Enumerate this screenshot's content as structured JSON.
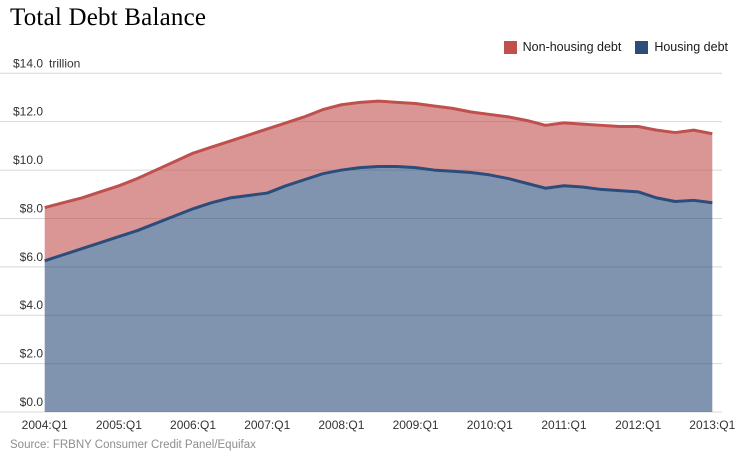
{
  "title": "Total Debt Balance",
  "source": "Source: FRBNY Consumer Credit Panel/Equifax",
  "legend": [
    {
      "label": "Non-housing debt",
      "color": "#c0504d"
    },
    {
      "label": "Housing debt",
      "color": "#2b4d7c"
    }
  ],
  "chart_data": {
    "type": "area",
    "stacked": true,
    "title": "Total Debt Balance",
    "ylabel": "trillion",
    "ylim": [
      0,
      14
    ],
    "grid": true,
    "legend_position": "top-right",
    "x": [
      "2004:Q1",
      "2004:Q2",
      "2004:Q3",
      "2004:Q4",
      "2005:Q1",
      "2005:Q2",
      "2005:Q3",
      "2005:Q4",
      "2006:Q1",
      "2006:Q2",
      "2006:Q3",
      "2006:Q4",
      "2007:Q1",
      "2007:Q2",
      "2007:Q3",
      "2007:Q4",
      "2008:Q1",
      "2008:Q2",
      "2008:Q3",
      "2008:Q4",
      "2009:Q1",
      "2009:Q2",
      "2009:Q3",
      "2009:Q4",
      "2010:Q1",
      "2010:Q2",
      "2010:Q3",
      "2010:Q4",
      "2011:Q1",
      "2011:Q2",
      "2011:Q3",
      "2011:Q4",
      "2012:Q1",
      "2012:Q2",
      "2012:Q3",
      "2012:Q4",
      "2013:Q1"
    ],
    "x_ticks": [
      {
        "index": 0,
        "label": "2004:Q1"
      },
      {
        "index": 4,
        "label": "2005:Q1"
      },
      {
        "index": 8,
        "label": "2006:Q1"
      },
      {
        "index": 12,
        "label": "2007:Q1"
      },
      {
        "index": 16,
        "label": "2008:Q1"
      },
      {
        "index": 20,
        "label": "2009:Q1"
      },
      {
        "index": 24,
        "label": "2010:Q1"
      },
      {
        "index": 28,
        "label": "2011:Q1"
      },
      {
        "index": 32,
        "label": "2012:Q1"
      },
      {
        "index": 36,
        "label": "2013:Q1"
      }
    ],
    "y_ticks": [
      {
        "value": 14,
        "label": "$14.0"
      },
      {
        "value": 12,
        "label": "$12.0"
      },
      {
        "value": 10,
        "label": "$10.0"
      },
      {
        "value": 8,
        "label": "$8.0"
      },
      {
        "value": 6,
        "label": "$6.0"
      },
      {
        "value": 4,
        "label": "$4.0"
      },
      {
        "value": 2,
        "label": "$2.0"
      },
      {
        "value": 0,
        "label": "$0.0"
      }
    ],
    "series": [
      {
        "name": "Housing debt",
        "line_color": "#2b4d7c",
        "fill_color": "#2b4d7c",
        "fill_opacity": 0.6,
        "values": [
          6.25,
          6.5,
          6.75,
          7.0,
          7.25,
          7.5,
          7.8,
          8.1,
          8.4,
          8.65,
          8.85,
          8.95,
          9.05,
          9.35,
          9.6,
          9.85,
          10.0,
          10.1,
          10.15,
          10.15,
          10.1,
          10.0,
          9.95,
          9.9,
          9.8,
          9.65,
          9.45,
          9.25,
          9.35,
          9.3,
          9.2,
          9.15,
          9.1,
          8.85,
          8.7,
          8.75,
          8.65
        ]
      },
      {
        "name": "Non-housing debt",
        "line_color": "#c0504d",
        "fill_color": "#c0504d",
        "fill_opacity": 0.6,
        "values": [
          2.2,
          2.15,
          2.1,
          2.1,
          2.1,
          2.15,
          2.2,
          2.25,
          2.3,
          2.3,
          2.35,
          2.5,
          2.65,
          2.6,
          2.6,
          2.65,
          2.7,
          2.7,
          2.7,
          2.65,
          2.65,
          2.65,
          2.6,
          2.5,
          2.5,
          2.55,
          2.6,
          2.6,
          2.6,
          2.6,
          2.65,
          2.65,
          2.7,
          2.8,
          2.85,
          2.9,
          2.85
        ]
      }
    ]
  }
}
